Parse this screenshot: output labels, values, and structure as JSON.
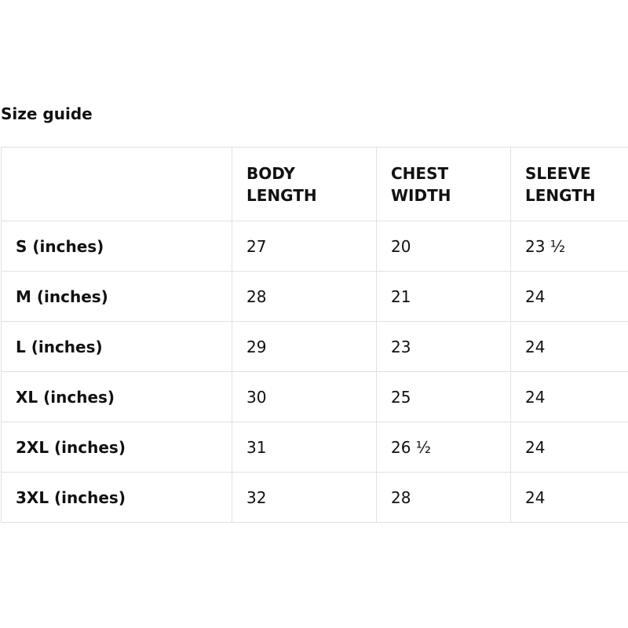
{
  "title": "Size guide",
  "columns": [
    "",
    "BODY\nLENGTH",
    "CHEST\nWIDTH",
    "SLEEVE\nLENGTH"
  ],
  "rows": [
    {
      "size": "S (inches)",
      "body_length": "27",
      "chest_width": "20",
      "sleeve_length": "23 ½"
    },
    {
      "size": "M (inches)",
      "body_length": "28",
      "chest_width": "21",
      "sleeve_length": "24"
    },
    {
      "size": "L (inches)",
      "body_length": "29",
      "chest_width": "23",
      "sleeve_length": "24"
    },
    {
      "size": "XL (inches)",
      "body_length": "30",
      "chest_width": "25",
      "sleeve_length": "24"
    },
    {
      "size": "2XL (inches)",
      "body_length": "31",
      "chest_width": "26 ½",
      "sleeve_length": "24"
    },
    {
      "size": "3XL (inches)",
      "body_length": "32",
      "chest_width": "28",
      "sleeve_length": "24"
    }
  ]
}
